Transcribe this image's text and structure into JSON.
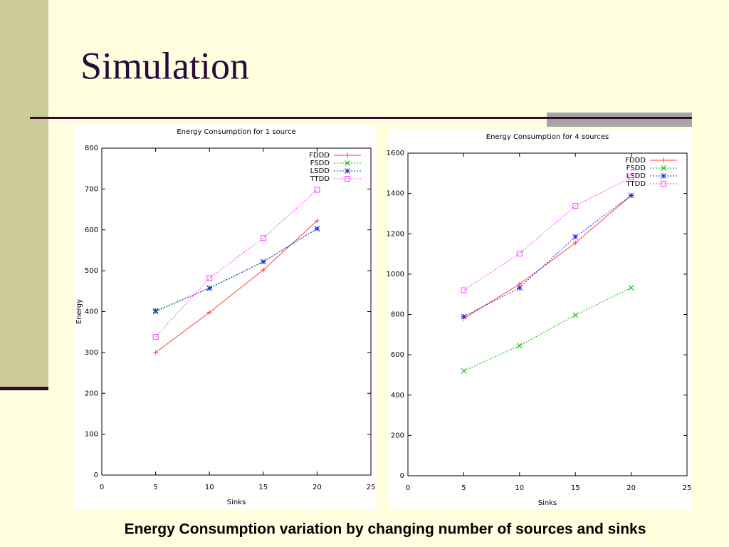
{
  "slide": {
    "title": "Simulation",
    "caption": "Energy Consumption variation by changing number of sources and sinks"
  },
  "chart_data": [
    {
      "type": "line",
      "title": "Energy Consumption for 1 source",
      "xlabel": "Sinks",
      "ylabel": "Energy",
      "x": [
        5,
        10,
        15,
        20
      ],
      "xlim": [
        0,
        25
      ],
      "xticks": [
        0,
        5,
        10,
        15,
        20,
        25
      ],
      "ylim": [
        0,
        800
      ],
      "yticks": [
        0,
        100,
        200,
        300,
        400,
        500,
        600,
        700,
        800
      ],
      "legend": "upper right",
      "series": [
        {
          "name": "FDDD",
          "color": "#ff4040",
          "marker": "plus",
          "values": [
            300,
            398,
            502,
            622
          ]
        },
        {
          "name": "FSDD",
          "color": "#00c000",
          "marker": "cross",
          "values": [
            400,
            458,
            522,
            603
          ]
        },
        {
          "name": "LSDD",
          "color": "#2020ff",
          "marker": "star",
          "values": [
            402,
            457,
            522,
            603
          ]
        },
        {
          "name": "TTDD",
          "color": "#ff40ff",
          "marker": "square",
          "values": [
            338,
            482,
            580,
            698
          ]
        }
      ]
    },
    {
      "type": "line",
      "title": "Energy Consumption for 4 sources",
      "xlabel": "Sinks",
      "ylabel": "",
      "x": [
        5,
        10,
        15,
        20
      ],
      "xlim": [
        0,
        25
      ],
      "xticks": [
        0,
        5,
        10,
        15,
        20,
        25
      ],
      "ylim": [
        0,
        1600
      ],
      "yticks": [
        0,
        200,
        400,
        600,
        800,
        1000,
        1200,
        1400,
        1600
      ],
      "legend": "upper right",
      "series": [
        {
          "name": "FDDD",
          "color": "#ff4040",
          "marker": "plus",
          "values": [
            780,
            950,
            1155,
            1390
          ]
        },
        {
          "name": "FSDD",
          "color": "#00c000",
          "marker": "cross",
          "values": [
            520,
            645,
            797,
            932
          ]
        },
        {
          "name": "LSDD",
          "color": "#2020ff",
          "marker": "star",
          "values": [
            790,
            932,
            1185,
            1390
          ]
        },
        {
          "name": "TTDD",
          "color": "#ff40ff",
          "marker": "square",
          "values": [
            920,
            1102,
            1338,
            1480
          ]
        }
      ]
    }
  ]
}
